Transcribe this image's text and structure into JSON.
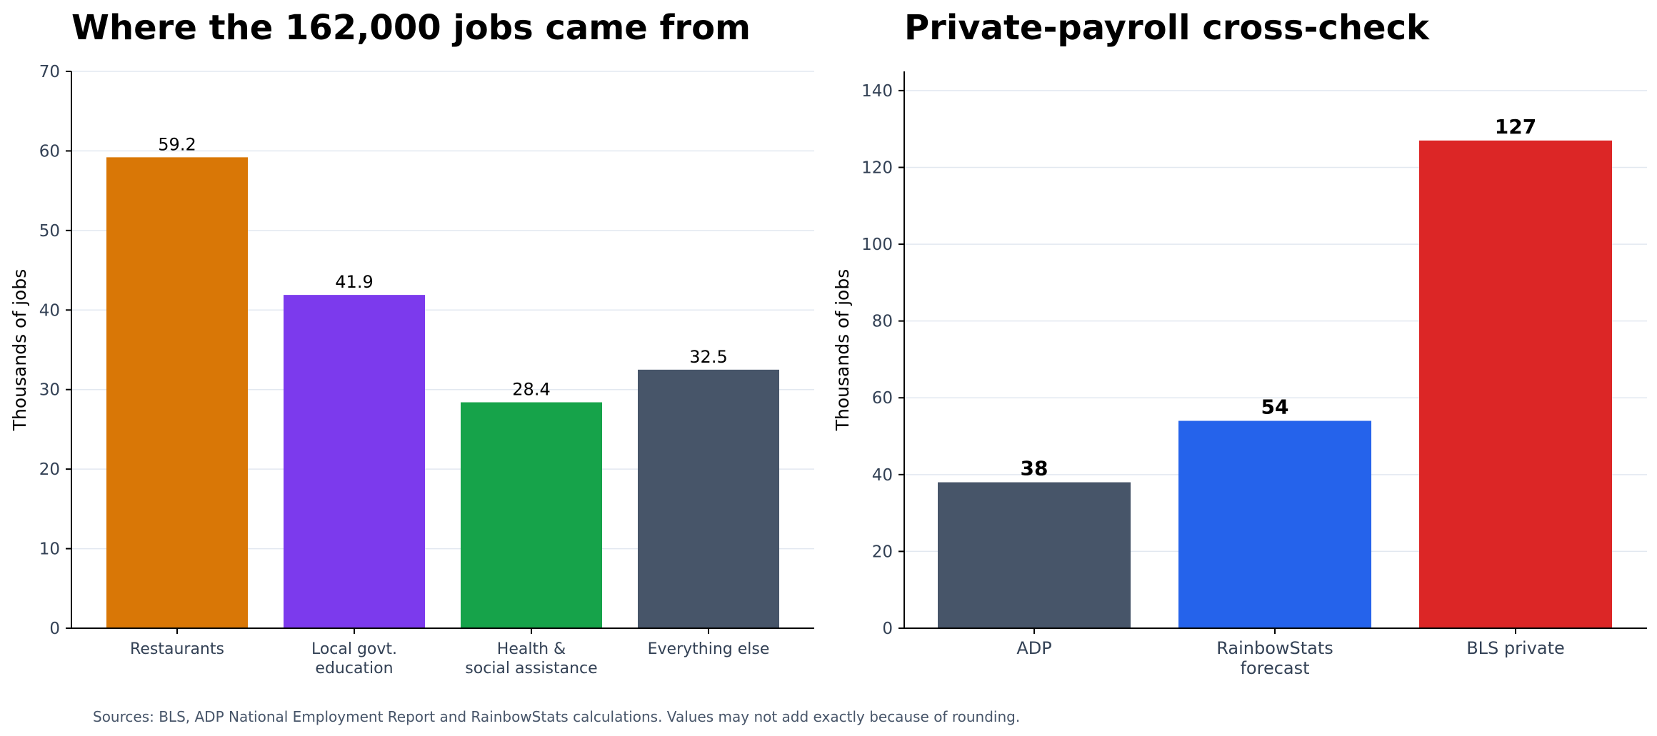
{
  "chart_data": [
    {
      "type": "bar",
      "title": "Where the 162,000 jobs came from",
      "ylabel": "Thousands of jobs",
      "ylim": [
        0,
        70
      ],
      "yticks": [
        0,
        10,
        20,
        30,
        40,
        50,
        60,
        70
      ],
      "grid": true,
      "categories": [
        [
          "Restaurants"
        ],
        [
          "Local govt.",
          "education"
        ],
        [
          "Health &",
          "social assistance"
        ],
        [
          "Everything else"
        ]
      ],
      "values": [
        59.2,
        41.9,
        28.4,
        32.5
      ],
      "value_labels": [
        "59.2",
        "41.9",
        "28.4",
        "32.5"
      ],
      "colors": [
        "#d97706",
        "#7c3aed",
        "#16a34a",
        "#475569"
      ]
    },
    {
      "type": "bar",
      "title": "Private-payroll cross-check",
      "ylabel": "Thousands of jobs",
      "ylim": [
        0,
        145
      ],
      "yticks": [
        0,
        20,
        40,
        60,
        80,
        100,
        120,
        140
      ],
      "grid": true,
      "categories": [
        [
          "ADP"
        ],
        [
          "RainbowStats",
          "forecast"
        ],
        [
          "BLS private"
        ]
      ],
      "values": [
        38,
        54,
        127
      ],
      "value_labels": [
        "38",
        "54",
        "127"
      ],
      "colors": [
        "#475569",
        "#2563eb",
        "#dc2626"
      ]
    }
  ],
  "footer": {
    "source": "Sources: BLS, ADP National Employment Report and RainbowStats calculations. Values may not add exactly because of rounding."
  }
}
